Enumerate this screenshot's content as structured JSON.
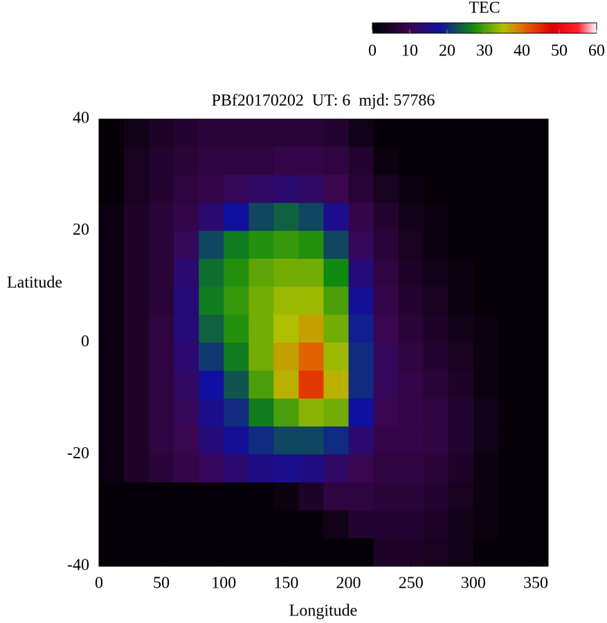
{
  "chart_data": {
    "type": "heatmap",
    "title": "PBf20170202  UT: 6  mjd: 57786",
    "x_label": "Longitude",
    "y_label": "Latitude",
    "x": [
      10,
      30,
      50,
      70,
      90,
      110,
      130,
      150,
      170,
      190,
      210,
      230,
      250,
      270,
      290,
      310,
      330,
      350
    ],
    "y": [
      37.5,
      32.5,
      27.5,
      22.5,
      17.5,
      12.5,
      7.5,
      2.5,
      -2.5,
      -7.5,
      -12.5,
      -17.5,
      -22.5,
      -27.5,
      -32.5,
      -37.5
    ],
    "z": [
      [
        1,
        3,
        5,
        6,
        7,
        7,
        7,
        7,
        7,
        6,
        3,
        1,
        1,
        1,
        1,
        1,
        1,
        1
      ],
      [
        1,
        4,
        6,
        7,
        8,
        8,
        8,
        9,
        9,
        8,
        6,
        2,
        1,
        1,
        1,
        1,
        1,
        1
      ],
      [
        1,
        4,
        6,
        8,
        9,
        11,
        12,
        13,
        12,
        10,
        7,
        4,
        2,
        1,
        1,
        1,
        1,
        1
      ],
      [
        2,
        5,
        7,
        9,
        13,
        18,
        22,
        24,
        22,
        16,
        9,
        6,
        3,
        2,
        1,
        1,
        1,
        1
      ],
      [
        2,
        5,
        7,
        11,
        22,
        26,
        28,
        29,
        28,
        22,
        11,
        7,
        4,
        2,
        1,
        1,
        1,
        1
      ],
      [
        2,
        5,
        7,
        13,
        25,
        28,
        31,
        32,
        32,
        27,
        14,
        8,
        5,
        3,
        2,
        1,
        1,
        1
      ],
      [
        2,
        5,
        7,
        14,
        26,
        29,
        32,
        34,
        34,
        30,
        17,
        9,
        6,
        4,
        2,
        1,
        1,
        1
      ],
      [
        2,
        5,
        8,
        14,
        24,
        28,
        32,
        35,
        37,
        32,
        19,
        10,
        7,
        5,
        3,
        2,
        1,
        1
      ],
      [
        2,
        5,
        8,
        13,
        21,
        26,
        32,
        37,
        41,
        34,
        20,
        11,
        8,
        6,
        4,
        2,
        1,
        1
      ],
      [
        2,
        5,
        8,
        12,
        18,
        23,
        30,
        36,
        44,
        36,
        20,
        11,
        9,
        7,
        5,
        2,
        1,
        1
      ],
      [
        2,
        5,
        8,
        11,
        16,
        20,
        26,
        30,
        33,
        32,
        18,
        10,
        9,
        8,
        6,
        3,
        1,
        1
      ],
      [
        2,
        5,
        8,
        10,
        14,
        17,
        20,
        22,
        22,
        20,
        13,
        9,
        9,
        8,
        6,
        3,
        1,
        1
      ],
      [
        2,
        5,
        7,
        9,
        11,
        13,
        15,
        16,
        15,
        12,
        10,
        8,
        8,
        7,
        5,
        2,
        1,
        1
      ],
      [
        1,
        1,
        1,
        1,
        1,
        1,
        1,
        2,
        5,
        8,
        8,
        7,
        7,
        6,
        4,
        2,
        1,
        1
      ],
      [
        1,
        1,
        1,
        1,
        1,
        1,
        1,
        1,
        1,
        3,
        6,
        6,
        6,
        5,
        3,
        2,
        1,
        1
      ],
      [
        1,
        1,
        1,
        1,
        1,
        1,
        1,
        1,
        1,
        1,
        1,
        5,
        5,
        4,
        3,
        1,
        1,
        1
      ]
    ],
    "xlim": [
      0,
      360
    ],
    "ylim": [
      -40,
      40
    ],
    "xticks": [
      0,
      50,
      100,
      150,
      200,
      250,
      300,
      350
    ],
    "yticks": [
      -40,
      -20,
      0,
      20,
      40
    ],
    "colorbar": {
      "title": "TEC",
      "lim": [
        0,
        60
      ],
      "ticks": [
        0,
        10,
        20,
        30,
        40,
        50,
        60
      ]
    },
    "colorscale": [
      [
        0,
        "#000000"
      ],
      [
        10,
        "#3a0650"
      ],
      [
        18,
        "#1010a0"
      ],
      [
        27,
        "#108a10"
      ],
      [
        35,
        "#b0c000"
      ],
      [
        40,
        "#e07000"
      ],
      [
        48,
        "#e00000"
      ],
      [
        55,
        "#ff2030"
      ],
      [
        60,
        "#ffffff"
      ]
    ]
  }
}
